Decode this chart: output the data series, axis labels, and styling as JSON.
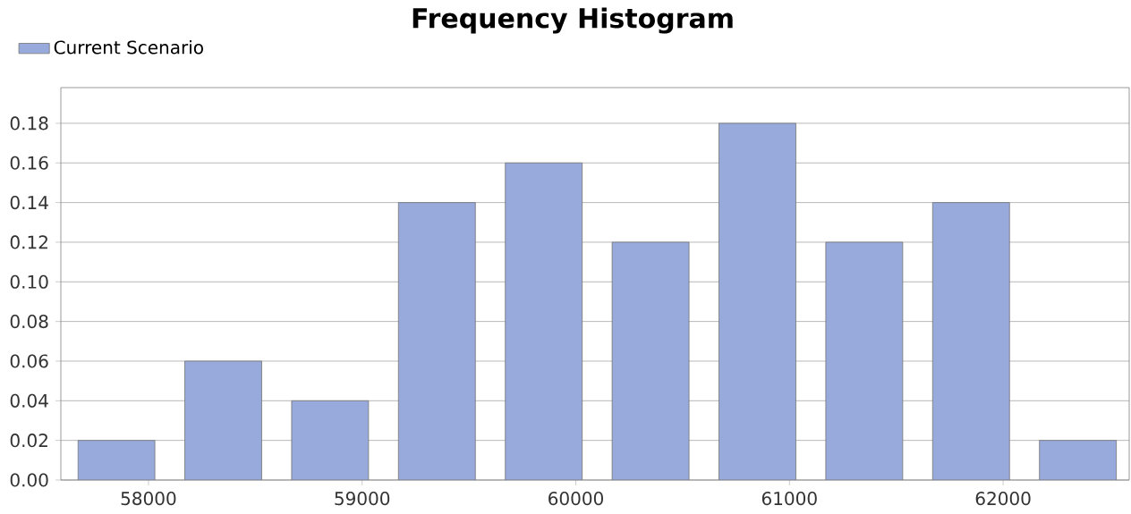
{
  "chart_data": {
    "type": "histogram",
    "title": "Frequency Histogram",
    "bins": [
      57600,
      58100,
      58600,
      59100,
      59600,
      60100,
      60600,
      61100,
      61600,
      62100,
      62600
    ],
    "series": [
      {
        "name": "Current Scenario",
        "color": "#98aadc",
        "values": [
          0.02,
          0.06,
          0.04,
          0.14,
          0.16,
          0.12,
          0.18,
          0.12,
          0.14,
          0.02
        ]
      }
    ],
    "xlim": [
      57590,
      62590
    ],
    "ylim": [
      0,
      0.198
    ],
    "xticks": [
      58000,
      59000,
      60000,
      61000,
      62000
    ],
    "yticks": [
      {
        "value": 0,
        "label": "0.00"
      },
      {
        "value": 0.02,
        "label": "0.02"
      },
      {
        "value": 0.04,
        "label": "0.04"
      },
      {
        "value": 0.06,
        "label": "0.06"
      },
      {
        "value": 0.08,
        "label": "0.08"
      },
      {
        "value": 0.1,
        "label": "0.10"
      },
      {
        "value": 0.12,
        "label": "0.12"
      },
      {
        "value": 0.14,
        "label": "0.14"
      },
      {
        "value": 0.16,
        "label": "0.16"
      },
      {
        "value": 0.18,
        "label": "0.18"
      }
    ],
    "grid": "y",
    "legend": "top left"
  }
}
